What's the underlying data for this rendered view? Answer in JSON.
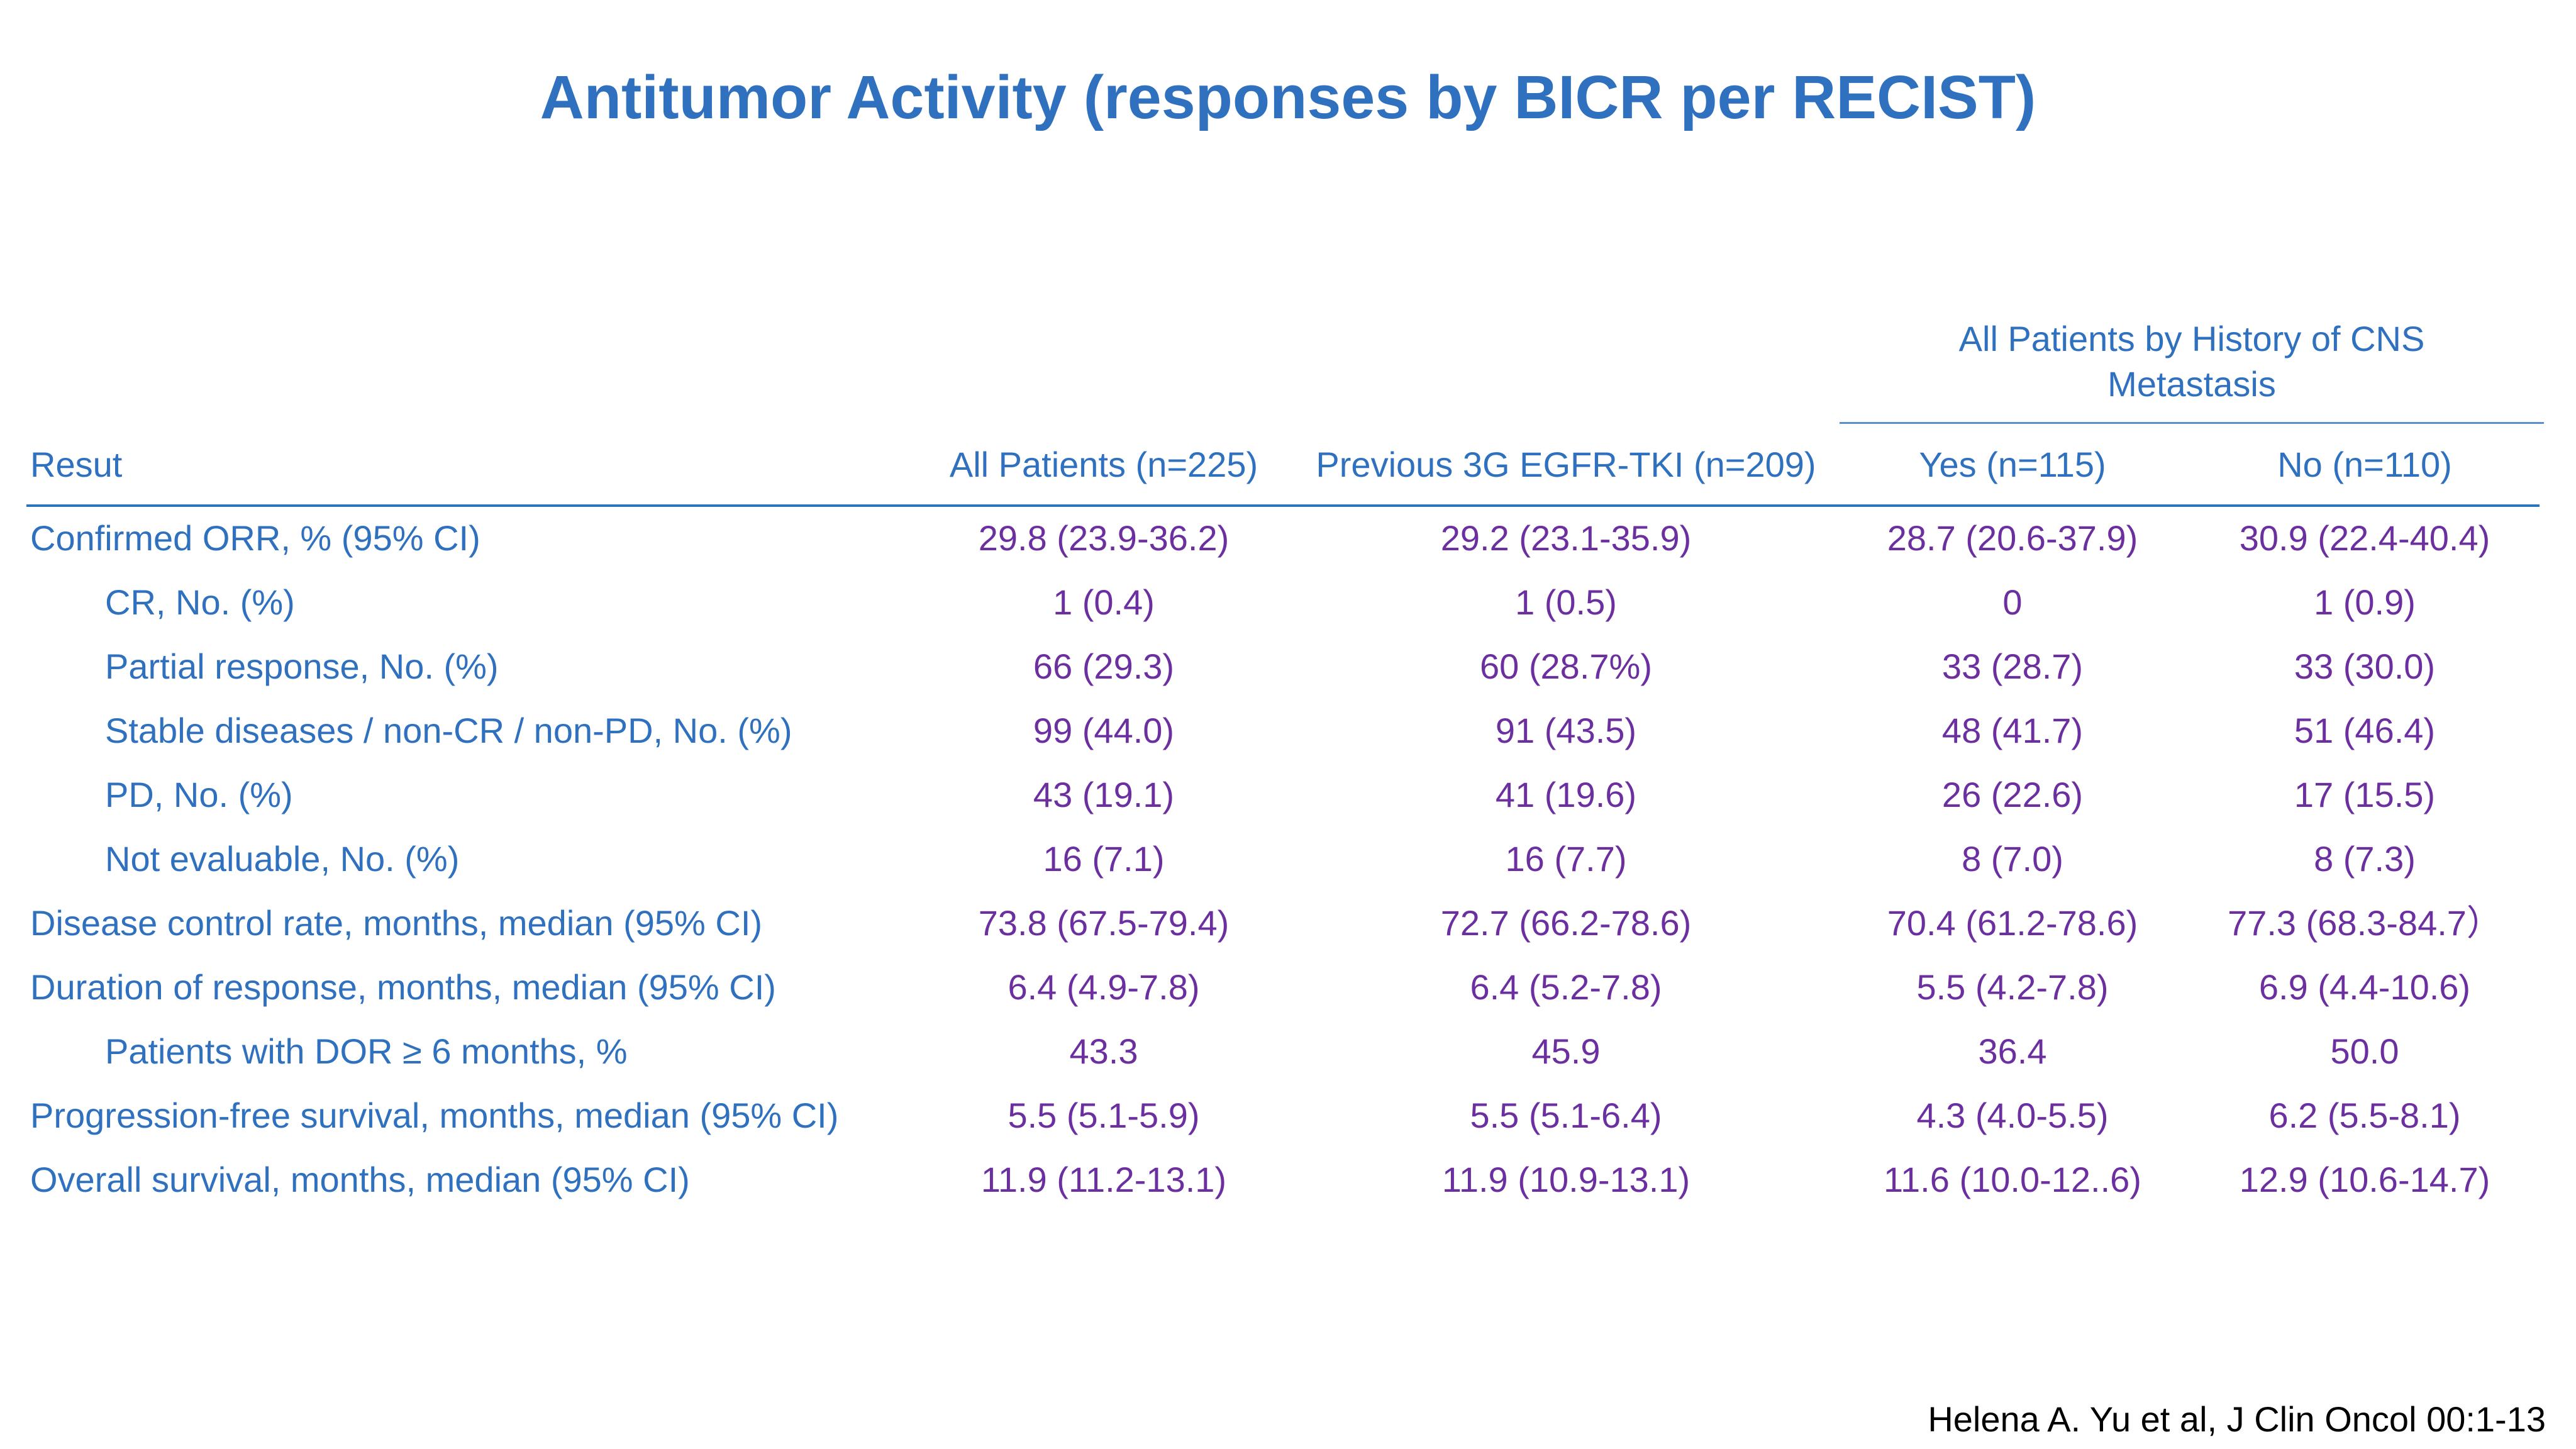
{
  "title": "Antitumor Activity (responses by BICR per RECIST)",
  "group_header": {
    "label": "All Patients by History of CNS Metastasis",
    "line1": "All Patients by History of CNS",
    "line2": "Metastasis"
  },
  "table": {
    "columns": [
      "Resut",
      "All Patients (n=225)",
      "Previous 3G EGFR-TKI (n=209)",
      "Yes (n=115)",
      "No (n=110)"
    ],
    "rows": [
      {
        "label": "Confirmed ORR, % (95% CI)",
        "indent": false,
        "all": "29.8 (23.9-36.2)",
        "prev": "29.2 (23.1-35.9)",
        "yes": "28.7 (20.6-37.9)",
        "no": "30.9 (22.4-40.4)"
      },
      {
        "label": "CR, No. (%)",
        "indent": true,
        "all": "1 (0.4)",
        "prev": "1 (0.5)",
        "yes": "0",
        "no": "1 (0.9)"
      },
      {
        "label": "Partial response, No. (%)",
        "indent": true,
        "all": "66 (29.3)",
        "prev": "60 (28.7%)",
        "yes": "33 (28.7)",
        "no": "33 (30.0)"
      },
      {
        "label": "Stable diseases / non-CR / non-PD, No. (%)",
        "indent": true,
        "all": "99 (44.0)",
        "prev": "91 (43.5)",
        "yes": "48 (41.7)",
        "no": "51 (46.4)"
      },
      {
        "label": "PD, No. (%)",
        "indent": true,
        "all": "43 (19.1)",
        "prev": "41 (19.6)",
        "yes": "26 (22.6)",
        "no": "17 (15.5)"
      },
      {
        "label": "Not evaluable, No. (%)",
        "indent": true,
        "all": "16 (7.1)",
        "prev": "16 (7.7)",
        "yes": "8 (7.0)",
        "no": "8 (7.3)"
      },
      {
        "label": "Disease control rate, months, median (95% CI)",
        "indent": false,
        "all": "73.8 (67.5-79.4)",
        "prev": "72.7 (66.2-78.6)",
        "yes": "70.4 (61.2-78.6)",
        "no": "77.3 (68.3-84.7）"
      },
      {
        "label": "Duration of response, months, median (95% CI)",
        "indent": false,
        "all": "6.4 (4.9-7.8)",
        "prev": "6.4 (5.2-7.8)",
        "yes": "5.5 (4.2-7.8)",
        "no": "6.9 (4.4-10.6)"
      },
      {
        "label": "Patients with DOR ≥ 6  months, %",
        "indent": true,
        "all": "43.3",
        "prev": "45.9",
        "yes": "36.4",
        "no": "50.0"
      },
      {
        "label": "Progression-free survival, months, median (95% CI)",
        "indent": false,
        "all": "5.5 (5.1-5.9)",
        "prev": "5.5 (5.1-6.4)",
        "yes": "4.3 (4.0-5.5)",
        "no": "6.2 (5.5-8.1)"
      },
      {
        "label": "Overall survival, months, median (95% CI)",
        "indent": false,
        "all": "11.9 (11.2-13.1)",
        "prev": "11.9 (10.9-13.1)",
        "yes": "11.6 (10.0-12..6)",
        "no": "12.9 (10.6-14.7)"
      }
    ]
  },
  "citation": "Helena A. Yu et al, J Clin Oncol 00:1-13",
  "colors": {
    "title": "#2F70BF",
    "label_text": "#2F70BF",
    "value_text": "#6B2FA0",
    "rule": "#2F70BF"
  }
}
